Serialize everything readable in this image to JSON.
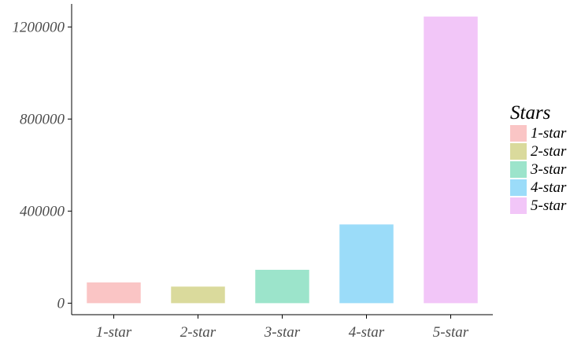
{
  "chart_data": {
    "type": "bar",
    "categories": [
      "1-star",
      "2-star",
      "3-star",
      "4-star",
      "5-star"
    ],
    "values": [
      90000,
      72000,
      145000,
      342000,
      1245000
    ],
    "colors": [
      "#fac5c5",
      "#dada9c",
      "#9ce4cb",
      "#9bdcf9",
      "#f2c6f8"
    ],
    "ylim": [
      -50000,
      1300000
    ],
    "yticks": [
      0,
      400000,
      800000,
      1200000
    ],
    "ytick_labels": [
      "0",
      "400000",
      "800000",
      "1200000"
    ],
    "grid": false,
    "legend": {
      "title": "Stars",
      "position": "right",
      "entries": [
        "1-star",
        "2-star",
        "3-star",
        "4-star",
        "5-star"
      ]
    }
  }
}
